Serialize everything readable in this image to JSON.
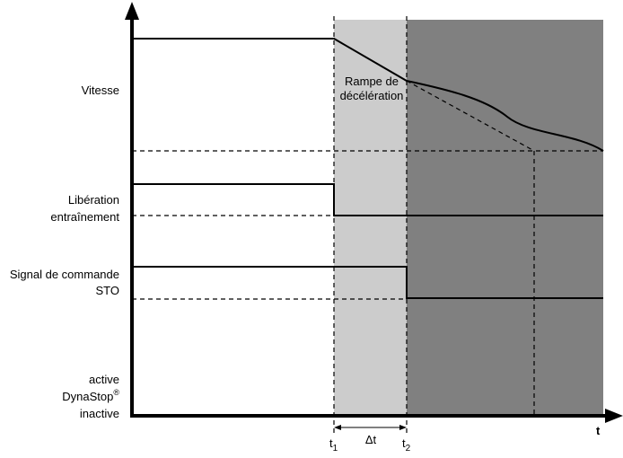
{
  "signals": {
    "speed": "Vitesse",
    "drive_release": [
      "Libération",
      "entraînement"
    ],
    "sto": [
      "Signal de commande",
      "STO"
    ],
    "dynastop": {
      "active": "active",
      "name": "DynaStop",
      "superscript": "®",
      "inactive": "inactive"
    }
  },
  "annotation": [
    "Rampe de",
    "décélération"
  ],
  "time_markers": [
    {
      "symbol": "t",
      "subscript": "1"
    },
    {
      "symbol": "t",
      "subscript": "2"
    }
  ],
  "interval": "Δt",
  "axis_label": "t"
}
